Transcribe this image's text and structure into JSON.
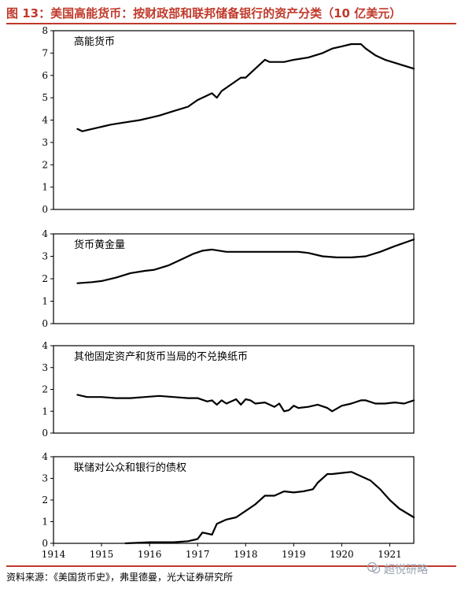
{
  "title": "图 13：美国高能货币：按财政部和联邦储备银行的资产分类（10 亿美元）",
  "source": "资料来源：《美国货币史》，弗里德曼，光大证券研究所",
  "watermark": "超悦研略",
  "colors": {
    "title": "#c0392b",
    "line": "#000000"
  },
  "chart_data": [
    {
      "type": "line",
      "title": "高能货币",
      "ylim": [
        0,
        8
      ],
      "yticks": [
        0,
        1,
        2,
        3,
        4,
        5,
        6,
        7,
        8
      ],
      "xlim": [
        1914,
        1921.5
      ],
      "series": [
        {
          "x": [
            1914.5,
            1914.6,
            1914.8,
            1915.0,
            1915.2,
            1915.5,
            1915.8,
            1916.0,
            1916.2,
            1916.5,
            1916.8,
            1917.0,
            1917.2,
            1917.3,
            1917.4,
            1917.5,
            1917.7,
            1917.9,
            1918.0,
            1918.2,
            1918.4,
            1918.5,
            1918.6,
            1918.8,
            1919.0,
            1919.3,
            1919.6,
            1919.8,
            1920.0,
            1920.2,
            1920.4,
            1920.5,
            1920.7,
            1920.9,
            1921.2,
            1921.5
          ],
          "y": [
            3.6,
            3.5,
            3.6,
            3.7,
            3.8,
            3.9,
            4.0,
            4.1,
            4.2,
            4.4,
            4.6,
            4.9,
            5.1,
            5.2,
            5.0,
            5.3,
            5.6,
            5.9,
            5.9,
            6.3,
            6.7,
            6.6,
            6.6,
            6.6,
            6.7,
            6.8,
            7.0,
            7.2,
            7.3,
            7.4,
            7.4,
            7.2,
            6.9,
            6.7,
            6.5,
            6.3
          ]
        }
      ]
    },
    {
      "type": "line",
      "title": "货币黄金量",
      "ylim": [
        0,
        4
      ],
      "yticks": [
        0,
        1,
        2,
        3,
        4
      ],
      "xlim": [
        1914,
        1921.5
      ],
      "series": [
        {
          "x": [
            1914.5,
            1914.8,
            1915.0,
            1915.3,
            1915.6,
            1915.9,
            1916.1,
            1916.4,
            1916.7,
            1916.9,
            1917.1,
            1917.3,
            1917.6,
            1918.0,
            1918.5,
            1918.9,
            1919.1,
            1919.3,
            1919.6,
            1919.9,
            1920.2,
            1920.5,
            1920.8,
            1921.1,
            1921.5
          ],
          "y": [
            1.8,
            1.85,
            1.9,
            2.05,
            2.25,
            2.35,
            2.4,
            2.6,
            2.9,
            3.1,
            3.25,
            3.3,
            3.2,
            3.2,
            3.2,
            3.2,
            3.2,
            3.15,
            3.0,
            2.95,
            2.95,
            3.0,
            3.2,
            3.45,
            3.75
          ]
        }
      ]
    },
    {
      "type": "line",
      "title": "其他固定资产和货币当局的不兑换纸币",
      "ylim": [
        0,
        4
      ],
      "yticks": [
        0,
        1,
        2,
        3,
        4
      ],
      "xlim": [
        1914,
        1921.5
      ],
      "series": [
        {
          "x": [
            1914.5,
            1914.7,
            1915.0,
            1915.3,
            1915.6,
            1915.9,
            1916.2,
            1916.5,
            1916.8,
            1917.0,
            1917.2,
            1917.3,
            1917.4,
            1917.5,
            1917.6,
            1917.8,
            1917.9,
            1918.0,
            1918.1,
            1918.2,
            1918.4,
            1918.6,
            1918.7,
            1918.8,
            1918.9,
            1919.0,
            1919.1,
            1919.3,
            1919.5,
            1919.7,
            1919.8,
            1920.0,
            1920.2,
            1920.4,
            1920.5,
            1920.7,
            1920.9,
            1921.1,
            1921.3,
            1921.5
          ],
          "y": [
            1.75,
            1.65,
            1.65,
            1.6,
            1.6,
            1.65,
            1.7,
            1.65,
            1.6,
            1.6,
            1.45,
            1.5,
            1.3,
            1.5,
            1.35,
            1.55,
            1.3,
            1.55,
            1.5,
            1.35,
            1.4,
            1.2,
            1.35,
            1.0,
            1.05,
            1.25,
            1.15,
            1.2,
            1.3,
            1.15,
            1.0,
            1.25,
            1.35,
            1.5,
            1.5,
            1.35,
            1.35,
            1.4,
            1.35,
            1.5
          ]
        }
      ]
    },
    {
      "type": "line",
      "title": "联储对公众和银行的债权",
      "ylim": [
        0,
        4
      ],
      "yticks": [
        0,
        1,
        2,
        3,
        4
      ],
      "xlim": [
        1914,
        1921.5
      ],
      "xticks": [
        1914,
        1915,
        1916,
        1917,
        1918,
        1919,
        1920,
        1921
      ],
      "series": [
        {
          "x": [
            1915.5,
            1916.0,
            1916.5,
            1916.8,
            1917.0,
            1917.1,
            1917.2,
            1917.3,
            1917.4,
            1917.6,
            1917.8,
            1918.0,
            1918.2,
            1918.4,
            1918.6,
            1918.8,
            1919.0,
            1919.2,
            1919.4,
            1919.5,
            1919.7,
            1919.8,
            1920.0,
            1920.2,
            1920.4,
            1920.6,
            1920.8,
            1921.0,
            1921.2,
            1921.5
          ],
          "y": [
            0.0,
            0.05,
            0.05,
            0.1,
            0.2,
            0.5,
            0.45,
            0.4,
            0.9,
            1.1,
            1.2,
            1.5,
            1.8,
            2.2,
            2.2,
            2.4,
            2.35,
            2.4,
            2.5,
            2.8,
            3.2,
            3.2,
            3.25,
            3.3,
            3.1,
            2.9,
            2.5,
            2.0,
            1.6,
            1.2
          ]
        }
      ]
    }
  ]
}
